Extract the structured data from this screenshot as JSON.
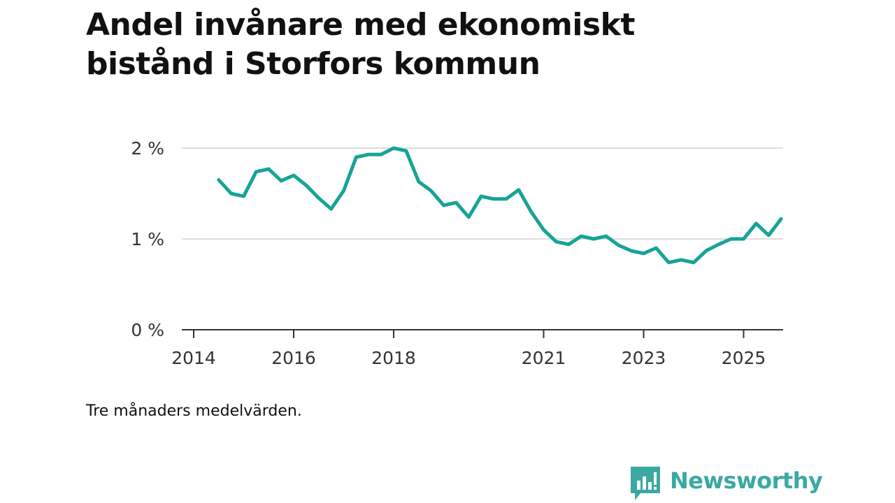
{
  "title_lines": [
    "Andel invånare med ekonomiskt",
    "bistånd i Storfors kommun"
  ],
  "note": "Tre månaders medelvärden.",
  "brand": {
    "name": "Newsworthy",
    "color": "#3aa9a2"
  },
  "colors": {
    "line": "#17a397",
    "grid": "#dddddd",
    "axis": "#333333"
  },
  "chart_data": {
    "type": "line",
    "title": "Andel invånare med ekonomiskt bistånd i Storfors kommun",
    "xlabel": "",
    "ylabel": "",
    "ylim": [
      0,
      2
    ],
    "xlim": [
      2014.0,
      2026.0
    ],
    "y_ticks": [
      0,
      1,
      2
    ],
    "y_tick_labels": [
      "0 %",
      "1 %",
      "2 %"
    ],
    "x_ticks": [
      2014,
      2016,
      2018,
      2021,
      2023,
      2025
    ],
    "x_tick_labels": [
      "2014",
      "2016",
      "2018",
      "2021",
      "2023",
      "2025"
    ],
    "grid": true,
    "legend": "none",
    "series": [
      {
        "name": "Andel invånare med ekonomiskt bistånd",
        "x": [
          2014.5,
          2014.75,
          2015.0,
          2015.25,
          2015.5,
          2015.75,
          2016.0,
          2016.25,
          2016.5,
          2016.75,
          2017.0,
          2017.25,
          2017.5,
          2017.75,
          2018.0,
          2018.25,
          2018.5,
          2018.75,
          2019.0,
          2019.25,
          2019.5,
          2019.75,
          2020.0,
          2020.25,
          2020.5,
          2020.75,
          2021.0,
          2021.25,
          2021.5,
          2021.75,
          2022.0,
          2022.25,
          2022.5,
          2022.75,
          2023.0,
          2023.25,
          2023.5,
          2023.75,
          2024.0,
          2024.25,
          2024.5,
          2024.75,
          2025.0,
          2025.25,
          2025.5,
          2025.75
        ],
        "values": [
          1.65,
          1.5,
          1.47,
          1.74,
          1.77,
          1.64,
          1.7,
          1.59,
          1.45,
          1.33,
          1.53,
          1.9,
          1.93,
          1.93,
          2.0,
          1.97,
          1.63,
          1.53,
          1.37,
          1.4,
          1.24,
          1.47,
          1.44,
          1.44,
          1.54,
          1.3,
          1.1,
          0.97,
          0.94,
          1.03,
          1.0,
          1.03,
          0.93,
          0.87,
          0.84,
          0.9,
          0.74,
          0.77,
          0.74,
          0.87,
          0.94,
          1.0,
          1.0,
          1.17,
          1.04,
          1.22
        ]
      }
    ]
  }
}
